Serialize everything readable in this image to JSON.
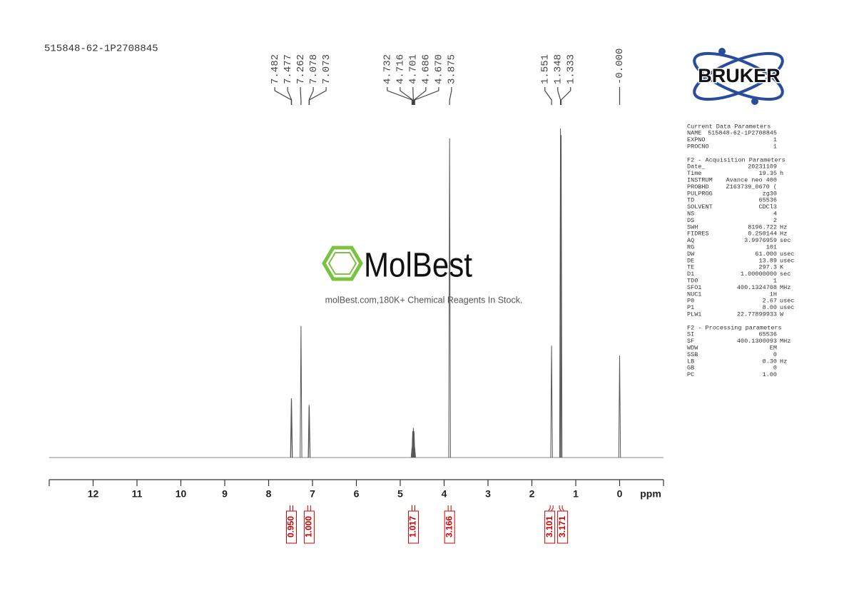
{
  "chart_data": {
    "type": "spectrum",
    "title": "515848-62-1P2708845",
    "xlabel": "ppm",
    "xlim": [
      13,
      -1
    ],
    "xticks": [
      12,
      11,
      10,
      9,
      8,
      7,
      6,
      5,
      4,
      3,
      2,
      1,
      0
    ],
    "ylim": [
      0,
      100
    ],
    "color": "#555555",
    "label_color": "#444444",
    "x": [
      7.482,
      7.477,
      7.262,
      7.078,
      7.073,
      4.732,
      4.716,
      4.701,
      4.686,
      4.67,
      3.875,
      1.551,
      1.348,
      1.333,
      0
    ],
    "peak_labels": [
      "7.482",
      "7.477",
      "7.262",
      "7.078",
      "7.073",
      "4.732",
      "4.716",
      "4.701",
      "4.686",
      "4.670",
      "3.875",
      "1.551",
      "1.348",
      "1.333",
      "-0.000"
    ],
    "values": [
      18,
      17.5,
      40,
      16,
      15.5,
      3,
      8,
      9,
      8,
      3,
      97,
      34,
      100,
      98,
      31
    ],
    "integrals": {
      "color": "#cc0000",
      "x": [
        7.48,
        7.075,
        4.7,
        3.875,
        1.55,
        1.34
      ],
      "values": [
        0.95,
        1,
        1.017,
        3.166,
        3.101,
        3.171
      ],
      "value_labels": [
        "0.950",
        "1.000",
        "1.017",
        "3.166",
        "3.101",
        "3.171"
      ]
    }
  },
  "watermark": {
    "brand": "MolBest",
    "tagline": "molBest.com,180K+ Chemical Reagents In Stock."
  },
  "logo": {
    "text": "BRUKER"
  },
  "parameters": {
    "sections": [
      {
        "title": "Current Data Parameters",
        "rows": [
          [
            "NAME",
            "515848-62-1P2708845"
          ],
          [
            "EXPNO",
            "1"
          ],
          [
            "PROCNO",
            "1"
          ]
        ]
      },
      {
        "title": "F2 - Acquisition Parameters",
        "rows": [
          [
            "Date_",
            "20231109"
          ],
          [
            "Time",
            "19.35",
            "h"
          ],
          [
            "INSTRUM",
            "Avance neo 400"
          ],
          [
            "PROBHD",
            "Z163739_0670 ("
          ],
          [
            "PULPROG",
            "zg30"
          ],
          [
            "TD",
            "65536"
          ],
          [
            "SOLVENT",
            "CDCl3"
          ],
          [
            "NS",
            "4"
          ],
          [
            "DS",
            "2"
          ],
          [
            "SWH",
            "8196.722",
            "Hz"
          ],
          [
            "FIDRES",
            "0.250144",
            "Hz"
          ],
          [
            "AQ",
            "3.9976959",
            "sec"
          ],
          [
            "RG",
            "101"
          ],
          [
            "DW",
            "61.000",
            "usec"
          ],
          [
            "DE",
            "13.89",
            "usec"
          ],
          [
            "TE",
            "297.3",
            "K"
          ],
          [
            "D1",
            "1.00000000",
            "sec"
          ],
          [
            "TD0",
            "1"
          ],
          [
            "SFO1",
            "400.1324708",
            "MHz"
          ],
          [
            "NUC1",
            "1H"
          ],
          [
            "P0",
            "2.67",
            "usec"
          ],
          [
            "P1",
            "8.00",
            "usec"
          ],
          [
            "PLW1",
            "22.77899933",
            "W"
          ]
        ]
      },
      {
        "title": "F2 - Processing parameters",
        "rows": [
          [
            "SI",
            "65536"
          ],
          [
            "SF",
            "400.1300093",
            "MHz"
          ],
          [
            "WDW",
            "EM"
          ],
          [
            "SSB",
            "0"
          ],
          [
            "LB",
            "0.30",
            "Hz"
          ],
          [
            "GB",
            "0"
          ],
          [
            "PC",
            "1.00"
          ]
        ]
      }
    ]
  }
}
